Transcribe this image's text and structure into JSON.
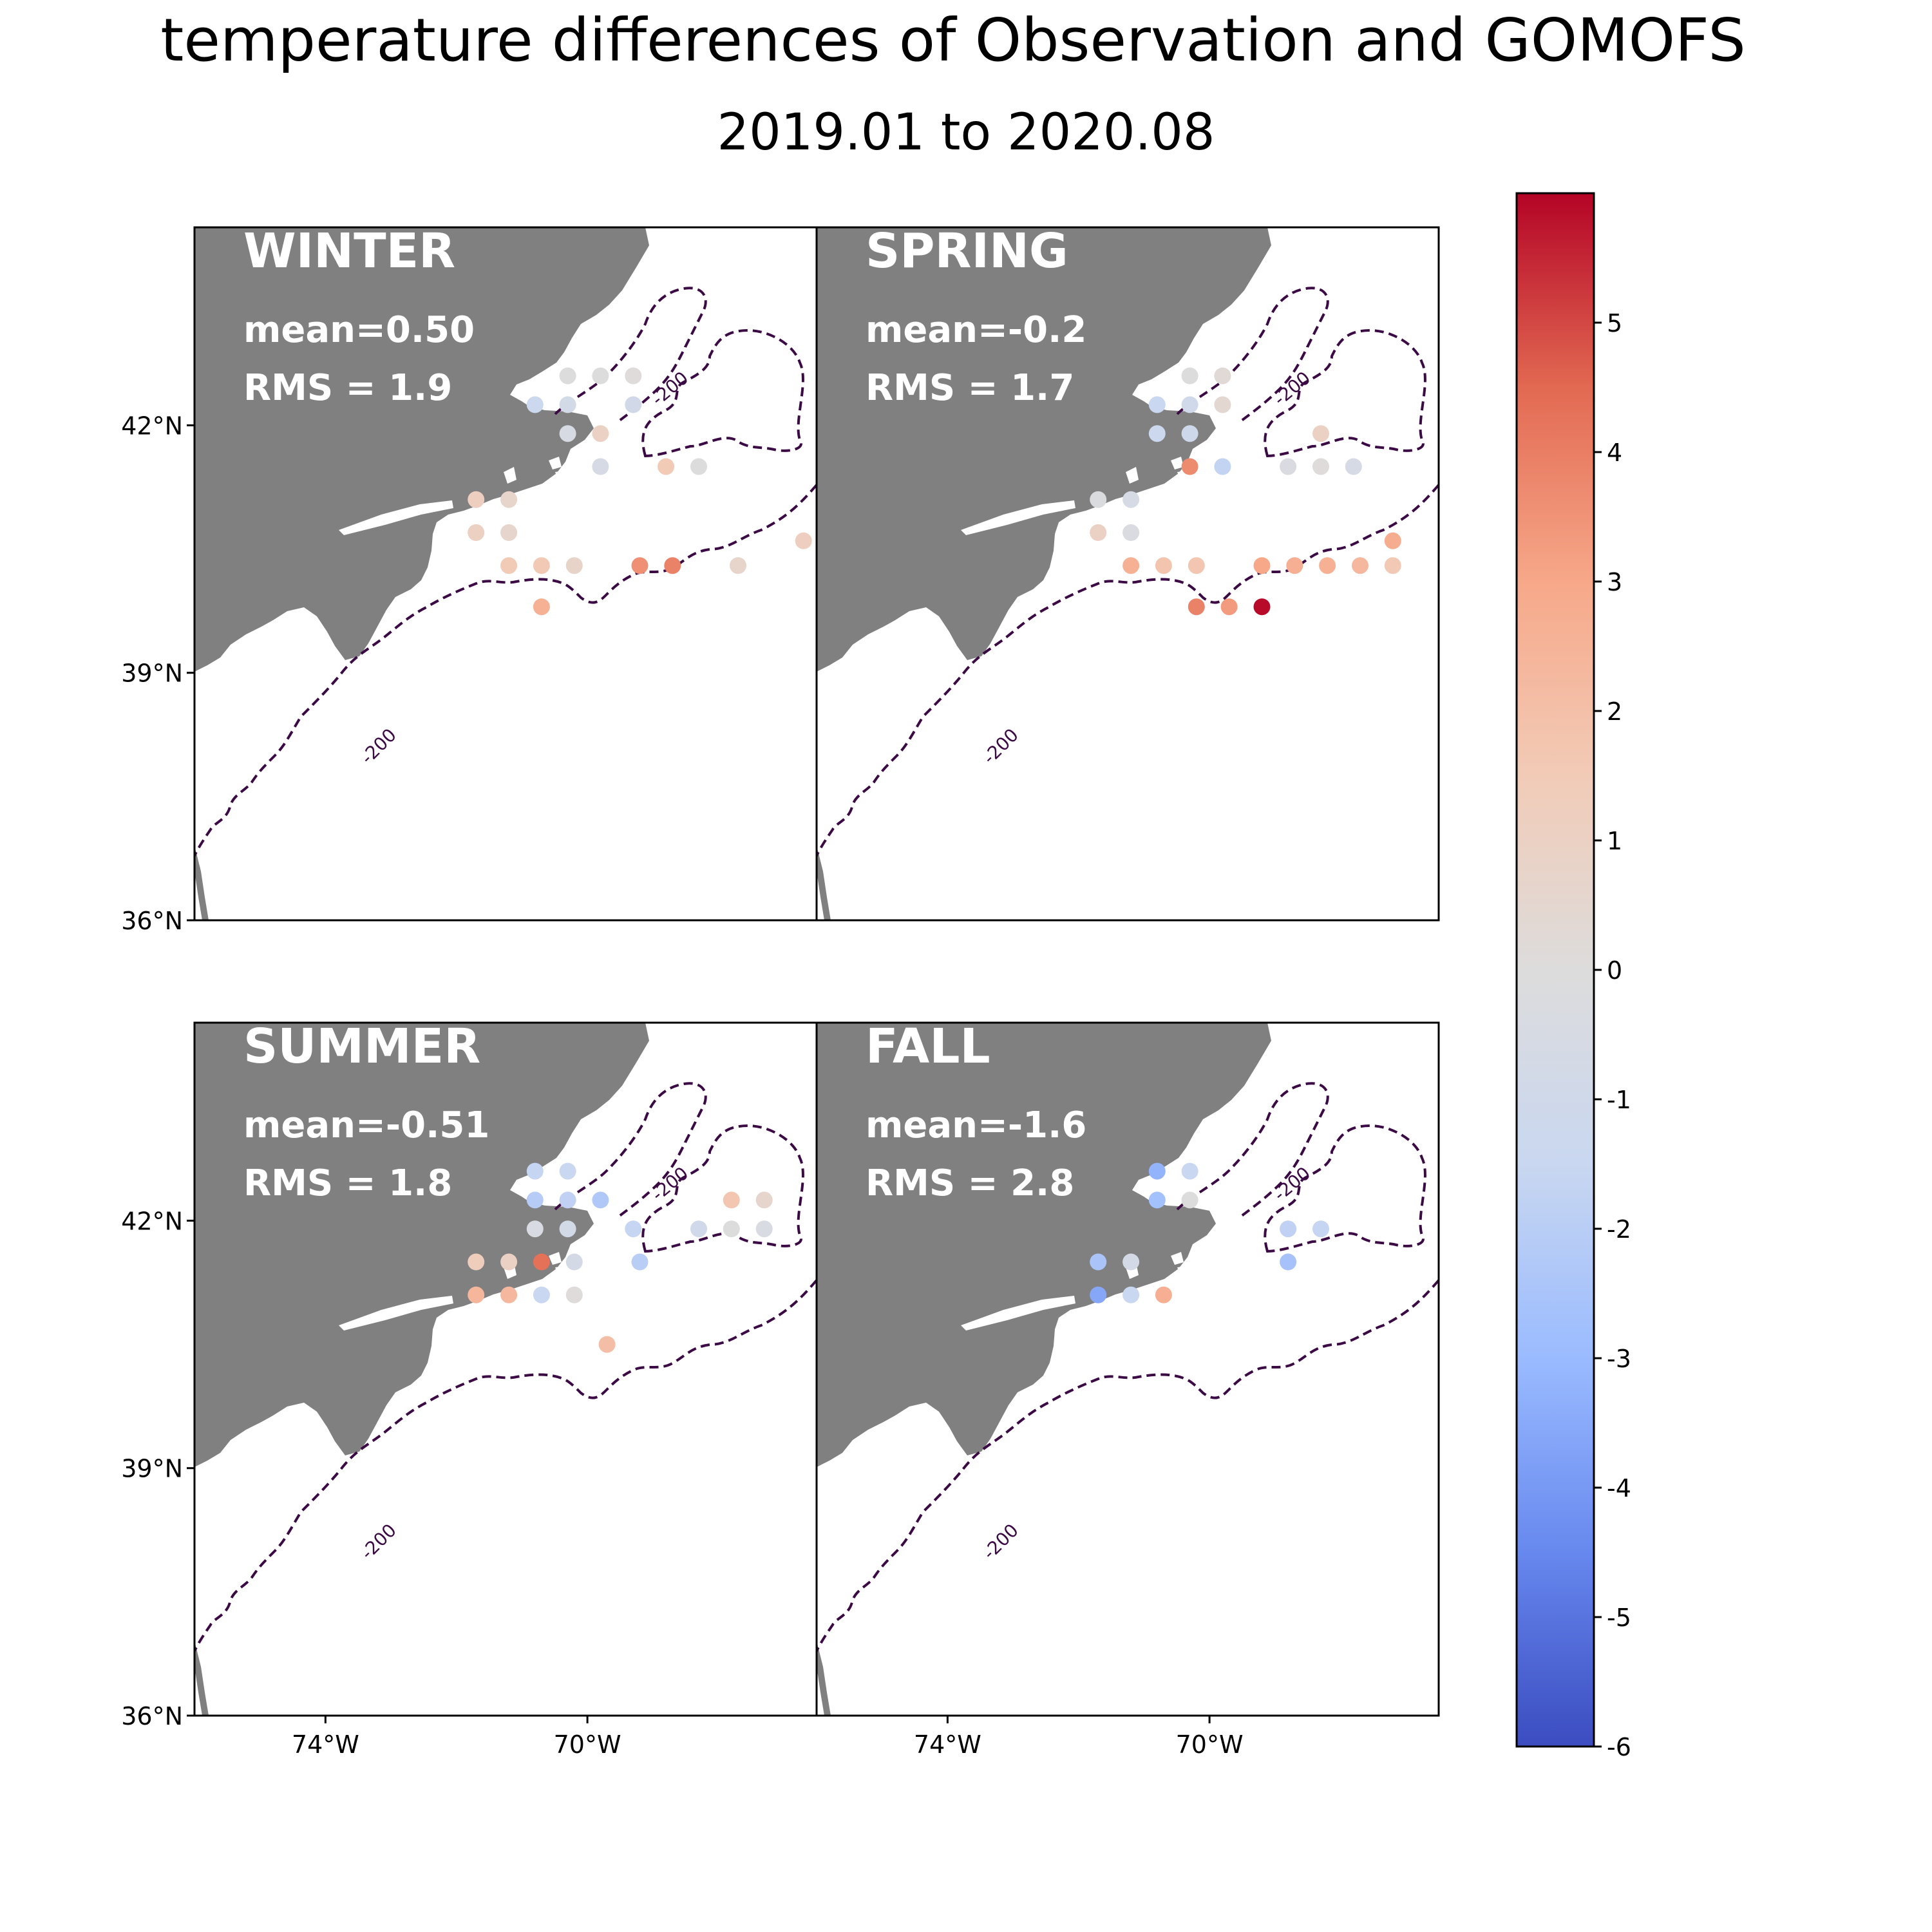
{
  "title": "temperature differences of Observation and GOMOFS",
  "subtitle": "2019.01 to 2020.08",
  "colors": {
    "land": "#808080",
    "contour": "#3b0a45",
    "stat_text": "#ffffff",
    "colormap": [
      "#3b4cc0",
      "#6788ee",
      "#9abbff",
      "#c9d7f0",
      "#dddcdc",
      "#f2cbb7",
      "#f7a889",
      "#e26952",
      "#b40426"
    ]
  },
  "chart_data": {
    "type": "scatter",
    "colorbar": {
      "min": -6,
      "max": 6,
      "ticks": [
        "5",
        "4",
        "3",
        "2",
        "1",
        "0",
        "-1",
        "-2",
        "-3",
        "-4",
        "-5",
        "-6"
      ]
    },
    "contour_label": "-200",
    "x_ticks": [
      "74°W",
      "70°W"
    ],
    "y_ticks": [
      "42°N",
      "39°N",
      "36°N"
    ],
    "xlim": [
      -76,
      -66.5
    ],
    "ylim": [
      36,
      44.4
    ],
    "panels": [
      {
        "name": "WINTER",
        "mean": "mean=0.50",
        "rms": "RMS = 1.9",
        "points": [
          {
            "lon": -70.3,
            "lat": 42.6,
            "v": -0.1
          },
          {
            "lon": -69.8,
            "lat": 42.6,
            "v": 0.0
          },
          {
            "lon": -69.3,
            "lat": 42.6,
            "v": 0.1
          },
          {
            "lon": -70.8,
            "lat": 42.25,
            "v": -1.3
          },
          {
            "lon": -70.3,
            "lat": 42.25,
            "v": -0.8
          },
          {
            "lon": -69.3,
            "lat": 42.25,
            "v": -0.9
          },
          {
            "lon": -70.3,
            "lat": 41.9,
            "v": -0.5
          },
          {
            "lon": -69.8,
            "lat": 41.9,
            "v": 1.0
          },
          {
            "lon": -69.8,
            "lat": 41.5,
            "v": -0.6
          },
          {
            "lon": -68.8,
            "lat": 41.5,
            "v": 1.5
          },
          {
            "lon": -68.3,
            "lat": 41.5,
            "v": 0.0
          },
          {
            "lon": -71.7,
            "lat": 41.1,
            "v": 1.2
          },
          {
            "lon": -71.2,
            "lat": 41.1,
            "v": 0.7
          },
          {
            "lon": -71.7,
            "lat": 40.7,
            "v": 1.1
          },
          {
            "lon": -71.2,
            "lat": 40.7,
            "v": 0.6
          },
          {
            "lon": -71.2,
            "lat": 40.3,
            "v": 1.5
          },
          {
            "lon": -70.7,
            "lat": 40.3,
            "v": 1.6
          },
          {
            "lon": -70.2,
            "lat": 40.3,
            "v": 0.8
          },
          {
            "lon": -69.2,
            "lat": 40.3,
            "v": 3.6
          },
          {
            "lon": -68.7,
            "lat": 40.3,
            "v": 3.9
          },
          {
            "lon": -67.7,
            "lat": 40.3,
            "v": 0.7
          },
          {
            "lon": -66.7,
            "lat": 40.6,
            "v": 1.2
          },
          {
            "lon": -70.7,
            "lat": 39.8,
            "v": 2.6
          }
        ]
      },
      {
        "name": "SPRING",
        "mean": "mean=-0.2",
        "rms": "RMS = 1.7",
        "points": [
          {
            "lon": -70.3,
            "lat": 42.6,
            "v": -0.1
          },
          {
            "lon": -69.8,
            "lat": 42.6,
            "v": 0.3
          },
          {
            "lon": -70.8,
            "lat": 42.25,
            "v": -1.5
          },
          {
            "lon": -70.3,
            "lat": 42.25,
            "v": -1.0
          },
          {
            "lon": -69.8,
            "lat": 42.25,
            "v": 0.4
          },
          {
            "lon": -70.8,
            "lat": 41.9,
            "v": -1.3
          },
          {
            "lon": -70.3,
            "lat": 41.9,
            "v": -1.1
          },
          {
            "lon": -68.3,
            "lat": 41.9,
            "v": 1.0
          },
          {
            "lon": -70.3,
            "lat": 41.5,
            "v": 3.7
          },
          {
            "lon": -69.8,
            "lat": 41.5,
            "v": -1.7
          },
          {
            "lon": -68.8,
            "lat": 41.5,
            "v": -0.3
          },
          {
            "lon": -68.3,
            "lat": 41.5,
            "v": 0.1
          },
          {
            "lon": -67.8,
            "lat": 41.5,
            "v": -0.6
          },
          {
            "lon": -71.7,
            "lat": 41.1,
            "v": -0.2
          },
          {
            "lon": -71.2,
            "lat": 41.1,
            "v": -0.6
          },
          {
            "lon": -71.7,
            "lat": 40.7,
            "v": 1.0
          },
          {
            "lon": -71.2,
            "lat": 40.7,
            "v": -0.3
          },
          {
            "lon": -71.2,
            "lat": 40.3,
            "v": 2.6
          },
          {
            "lon": -70.7,
            "lat": 40.3,
            "v": 1.8
          },
          {
            "lon": -70.2,
            "lat": 40.3,
            "v": 1.7
          },
          {
            "lon": -69.2,
            "lat": 40.3,
            "v": 3.0
          },
          {
            "lon": -68.7,
            "lat": 40.3,
            "v": 2.7
          },
          {
            "lon": -68.2,
            "lat": 40.3,
            "v": 2.6
          },
          {
            "lon": -67.7,
            "lat": 40.3,
            "v": 2.3
          },
          {
            "lon": -67.2,
            "lat": 40.3,
            "v": 1.6
          },
          {
            "lon": -67.2,
            "lat": 40.6,
            "v": 2.8
          },
          {
            "lon": -70.2,
            "lat": 39.8,
            "v": 3.9
          },
          {
            "lon": -69.7,
            "lat": 39.8,
            "v": 3.3
          },
          {
            "lon": -69.2,
            "lat": 39.8,
            "v": 5.9
          }
        ]
      },
      {
        "name": "SUMMER",
        "mean": "mean=-0.51",
        "rms": "RMS = 1.8",
        "points": [
          {
            "lon": -70.8,
            "lat": 42.6,
            "v": -1.6
          },
          {
            "lon": -70.3,
            "lat": 42.6,
            "v": -1.5
          },
          {
            "lon": -70.8,
            "lat": 42.25,
            "v": -2.1
          },
          {
            "lon": -70.3,
            "lat": 42.25,
            "v": -1.8
          },
          {
            "lon": -69.8,
            "lat": 42.25,
            "v": -2.3
          },
          {
            "lon": -67.8,
            "lat": 42.25,
            "v": 1.7
          },
          {
            "lon": -67.3,
            "lat": 42.25,
            "v": 0.6
          },
          {
            "lon": -70.8,
            "lat": 41.9,
            "v": -0.4
          },
          {
            "lon": -70.3,
            "lat": 41.9,
            "v": -0.8
          },
          {
            "lon": -69.3,
            "lat": 41.9,
            "v": -1.6
          },
          {
            "lon": -68.3,
            "lat": 41.9,
            "v": -1.0
          },
          {
            "lon": -67.8,
            "lat": 41.9,
            "v": -0.1
          },
          {
            "lon": -67.3,
            "lat": 41.9,
            "v": -0.4
          },
          {
            "lon": -71.7,
            "lat": 41.5,
            "v": 1.3
          },
          {
            "lon": -71.2,
            "lat": 41.5,
            "v": 1.0
          },
          {
            "lon": -70.7,
            "lat": 41.5,
            "v": 4.3
          },
          {
            "lon": -70.2,
            "lat": 41.5,
            "v": -0.7
          },
          {
            "lon": -69.2,
            "lat": 41.5,
            "v": -2.0
          },
          {
            "lon": -71.7,
            "lat": 41.1,
            "v": 2.4
          },
          {
            "lon": -71.2,
            "lat": 41.1,
            "v": 2.3
          },
          {
            "lon": -70.7,
            "lat": 41.1,
            "v": -1.5
          },
          {
            "lon": -70.2,
            "lat": 41.1,
            "v": 0.1
          },
          {
            "lon": -69.7,
            "lat": 40.5,
            "v": 2.1
          }
        ]
      },
      {
        "name": "FALL",
        "mean": "mean=-1.6",
        "rms": "RMS = 2.8",
        "points": [
          {
            "lon": -70.8,
            "lat": 42.6,
            "v": -3.2
          },
          {
            "lon": -70.3,
            "lat": 42.6,
            "v": -1.5
          },
          {
            "lon": -70.8,
            "lat": 42.25,
            "v": -2.7
          },
          {
            "lon": -70.3,
            "lat": 42.25,
            "v": -0.1
          },
          {
            "lon": -68.8,
            "lat": 41.9,
            "v": -1.8
          },
          {
            "lon": -68.3,
            "lat": 41.9,
            "v": -1.6
          },
          {
            "lon": -71.7,
            "lat": 41.5,
            "v": -2.5
          },
          {
            "lon": -71.2,
            "lat": 41.5,
            "v": -0.7
          },
          {
            "lon": -68.8,
            "lat": 41.5,
            "v": -2.6
          },
          {
            "lon": -71.7,
            "lat": 41.1,
            "v": -3.6
          },
          {
            "lon": -71.2,
            "lat": 41.1,
            "v": -1.5
          },
          {
            "lon": -70.7,
            "lat": 41.1,
            "v": 2.7
          }
        ]
      }
    ]
  }
}
